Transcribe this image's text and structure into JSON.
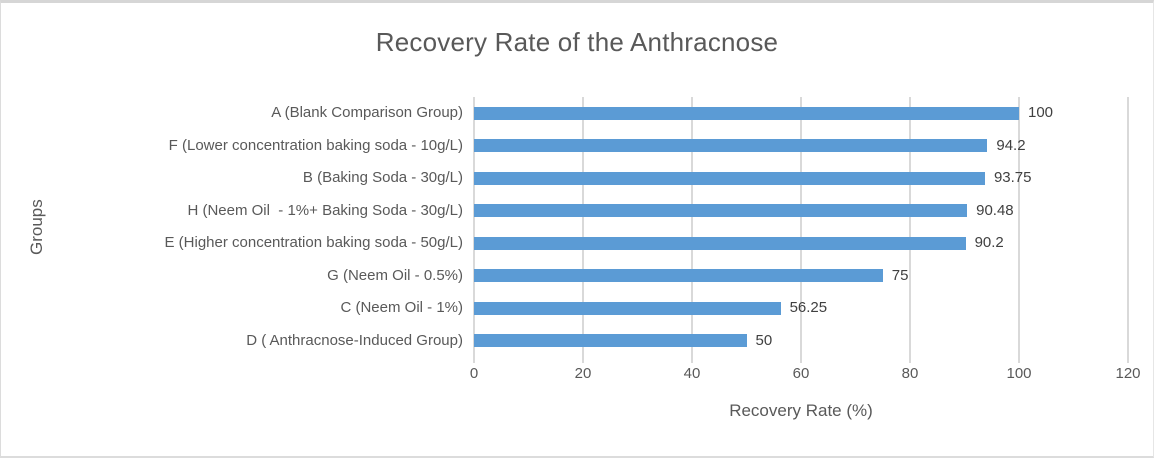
{
  "chart_data": {
    "type": "bar",
    "orientation": "horizontal",
    "title": "Recovery Rate of the Anthracnose",
    "xlabel": "Recovery Rate (%)",
    "ylabel": "Groups",
    "categories": [
      "A (Blank Comparison Group)",
      "F (Lower concentration baking soda - 10g/L)",
      "B (Baking Soda - 30g/L)",
      "H (Neem Oil  - 1%+ Baking Soda - 30g/L)",
      "E (Higher concentration baking soda - 50g/L)",
      "G (Neem Oil - 0.5%)",
      "C (Neem Oil - 1%)",
      "D ( Anthracnose-Induced Group)"
    ],
    "values": [
      100,
      94.2,
      93.75,
      90.48,
      90.2,
      75,
      56.25,
      50
    ],
    "value_labels": [
      "100",
      "94.2",
      "93.75",
      "90.48",
      "90.2",
      "75",
      "56.25",
      "50"
    ],
    "xlim": [
      0,
      120
    ],
    "xticks": [
      0,
      20,
      40,
      60,
      80,
      100,
      120
    ],
    "grid": true,
    "legend": "none",
    "bar_color": "#5b9bd5",
    "gridline_color": "#d9d9d9",
    "axis_text_color": "#595959",
    "data_label_color": "#404040"
  }
}
